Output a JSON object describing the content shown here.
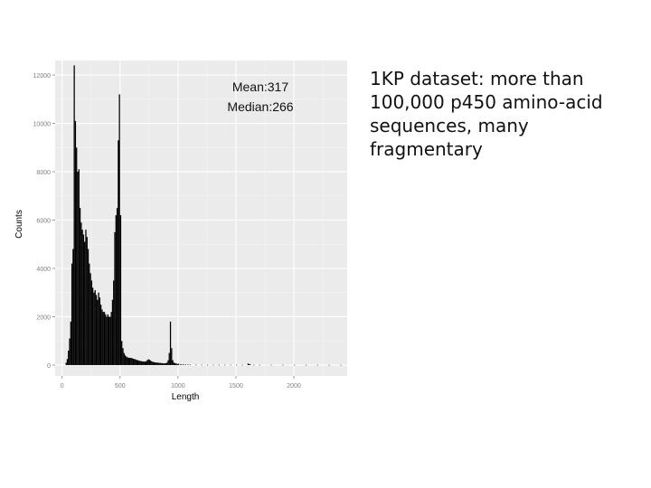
{
  "caption": "1KP dataset: more than\n100,000 p450 amino-acid\nsequences, many fragmentary",
  "chart_data": {
    "type": "bar",
    "title": "",
    "xlabel": "Length",
    "ylabel": "Counts",
    "xlim": [
      -60,
      2460
    ],
    "ylim": [
      -450,
      12600
    ],
    "x_ticks": [
      0,
      500,
      1000,
      1500,
      2000
    ],
    "x_tick_labels": [
      "0",
      "500",
      "1000",
      "1500",
      "2000"
    ],
    "y_ticks": [
      0,
      2000,
      4000,
      6000,
      8000,
      10000,
      12000
    ],
    "y_tick_labels": [
      "0",
      "2000",
      "4000",
      "6000",
      "8000",
      "10000",
      "12000"
    ],
    "grid": true,
    "annotations": [
      "Mean:317",
      "Median:266"
    ],
    "bin_width": 10,
    "bins": [
      [
        30,
        100
      ],
      [
        40,
        250
      ],
      [
        50,
        600
      ],
      [
        60,
        1100
      ],
      [
        70,
        1800
      ],
      [
        80,
        4200
      ],
      [
        90,
        4800
      ],
      [
        100,
        12400
      ],
      [
        110,
        10100
      ],
      [
        120,
        9000
      ],
      [
        130,
        8000
      ],
      [
        140,
        8100
      ],
      [
        150,
        6500
      ],
      [
        160,
        5900
      ],
      [
        170,
        5600
      ],
      [
        180,
        5400
      ],
      [
        190,
        5100
      ],
      [
        200,
        5600
      ],
      [
        210,
        5300
      ],
      [
        220,
        4800
      ],
      [
        230,
        4200
      ],
      [
        240,
        3800
      ],
      [
        250,
        3500
      ],
      [
        260,
        3200
      ],
      [
        270,
        3000
      ],
      [
        280,
        3100
      ],
      [
        290,
        2900
      ],
      [
        300,
        2700
      ],
      [
        310,
        3000
      ],
      [
        320,
        2800
      ],
      [
        330,
        2500
      ],
      [
        340,
        2300
      ],
      [
        350,
        2200
      ],
      [
        360,
        2200
      ],
      [
        370,
        2100
      ],
      [
        380,
        2000
      ],
      [
        390,
        2100
      ],
      [
        400,
        2000
      ],
      [
        410,
        2000
      ],
      [
        420,
        2200
      ],
      [
        430,
        2700
      ],
      [
        440,
        3500
      ],
      [
        450,
        5500
      ],
      [
        460,
        6200
      ],
      [
        470,
        6500
      ],
      [
        480,
        9300
      ],
      [
        490,
        11200
      ],
      [
        500,
        6200
      ],
      [
        510,
        1000
      ],
      [
        520,
        700
      ],
      [
        530,
        500
      ],
      [
        540,
        400
      ],
      [
        550,
        350
      ],
      [
        560,
        320
      ],
      [
        570,
        300
      ],
      [
        580,
        300
      ],
      [
        590,
        300
      ],
      [
        600,
        280
      ],
      [
        610,
        260
      ],
      [
        620,
        250
      ],
      [
        630,
        230
      ],
      [
        640,
        210
      ],
      [
        650,
        200
      ],
      [
        660,
        180
      ],
      [
        670,
        170
      ],
      [
        680,
        160
      ],
      [
        690,
        150
      ],
      [
        700,
        150
      ],
      [
        710,
        140
      ],
      [
        720,
        160
      ],
      [
        730,
        200
      ],
      [
        740,
        240
      ],
      [
        750,
        220
      ],
      [
        760,
        180
      ],
      [
        770,
        150
      ],
      [
        780,
        130
      ],
      [
        790,
        120
      ],
      [
        800,
        110
      ],
      [
        810,
        100
      ],
      [
        820,
        100
      ],
      [
        830,
        90
      ],
      [
        840,
        90
      ],
      [
        850,
        80
      ],
      [
        860,
        80
      ],
      [
        870,
        70
      ],
      [
        880,
        70
      ],
      [
        890,
        80
      ],
      [
        900,
        100
      ],
      [
        910,
        200
      ],
      [
        920,
        500
      ],
      [
        930,
        1800
      ],
      [
        940,
        700
      ],
      [
        950,
        200
      ],
      [
        960,
        100
      ],
      [
        970,
        80
      ],
      [
        980,
        60
      ],
      [
        990,
        50
      ],
      [
        1000,
        50
      ],
      [
        1020,
        40
      ],
      [
        1040,
        30
      ],
      [
        1060,
        25
      ],
      [
        1080,
        20
      ],
      [
        1100,
        15
      ],
      [
        1150,
        12
      ],
      [
        1200,
        10
      ],
      [
        1250,
        10
      ],
      [
        1300,
        10
      ],
      [
        1350,
        10
      ],
      [
        1400,
        10
      ],
      [
        1450,
        10
      ],
      [
        1500,
        10
      ],
      [
        1550,
        10
      ],
      [
        1600,
        60
      ],
      [
        1610,
        40
      ],
      [
        1620,
        20
      ],
      [
        1650,
        10
      ],
      [
        1700,
        8
      ],
      [
        1800,
        8
      ],
      [
        1900,
        8
      ],
      [
        2000,
        8
      ],
      [
        2100,
        6
      ],
      [
        2200,
        6
      ],
      [
        2300,
        5
      ],
      [
        2400,
        5
      ]
    ]
  },
  "colors": {
    "panel_bg": "#ebebeb",
    "grid_major": "#ffffff",
    "grid_minor": "#f5f5f5",
    "bar": "#000000",
    "tick_text": "#7f7f7f",
    "label_text": "#000000"
  }
}
